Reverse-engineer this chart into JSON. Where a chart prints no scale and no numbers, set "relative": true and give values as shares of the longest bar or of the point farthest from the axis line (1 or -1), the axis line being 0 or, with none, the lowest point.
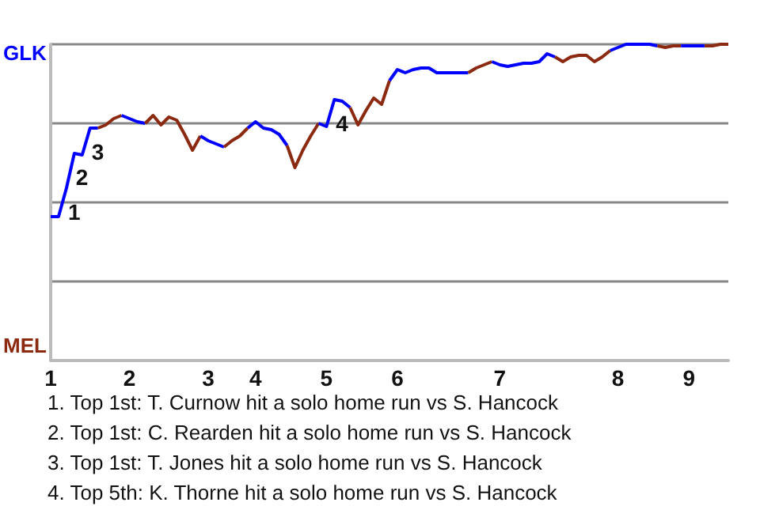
{
  "chart_data": {
    "type": "line",
    "grid": "y",
    "relative": true,
    "categories": [
      "1",
      null,
      null,
      null,
      null,
      null,
      null,
      null,
      null,
      null,
      "2",
      null,
      null,
      null,
      null,
      null,
      null,
      null,
      null,
      null,
      "3",
      null,
      null,
      null,
      null,
      null,
      "4",
      null,
      null,
      null,
      null,
      null,
      null,
      null,
      null,
      "5",
      null,
      null,
      null,
      null,
      null,
      null,
      null,
      null,
      "6",
      null,
      null,
      null,
      null,
      null,
      null,
      null,
      null,
      null,
      null,
      null,
      null,
      "7",
      null,
      null,
      null,
      null,
      null,
      null,
      null,
      null,
      null,
      null,
      null,
      null,
      null,
      null,
      "8",
      null,
      null,
      null,
      null,
      null,
      null,
      null,
      null,
      "9",
      null,
      null,
      null,
      null,
      null
    ],
    "series": [
      {
        "name": "GLK",
        "color": "#0000ff",
        "values": [
          0.455,
          0.455,
          0.545,
          0.655,
          0.65,
          0.735,
          0.735,
          null,
          null,
          null,
          null,
          null,
          null,
          null,
          null,
          null,
          null,
          null,
          null,
          null,
          null,
          null,
          null,
          null,
          null,
          null,
          null,
          null,
          null,
          null,
          null,
          null,
          null,
          null,
          null,
          null,
          null,
          null,
          null,
          null,
          null,
          null,
          null,
          null,
          null,
          null,
          null,
          null,
          null,
          null,
          null,
          null,
          null,
          null,
          null,
          null,
          null,
          null,
          null,
          null,
          null,
          null,
          null,
          null,
          null,
          null,
          null,
          null,
          null,
          null,
          null,
          null,
          null,
          null,
          null,
          null,
          null,
          null,
          null,
          null,
          null,
          null,
          null,
          null,
          null,
          null,
          null
        ]
      },
      {
        "name": "MEL",
        "color": "#8b2a10",
        "values": [
          null,
          null,
          null,
          null,
          null,
          null,
          0.735,
          0.745,
          0.765,
          0.775,
          null,
          null,
          null,
          null,
          null,
          null,
          null,
          null,
          null,
          null,
          null,
          null,
          null,
          null,
          null,
          null,
          null,
          null,
          null,
          null,
          null,
          null,
          null,
          null,
          null,
          null,
          null,
          null,
          null,
          null,
          null,
          null,
          null,
          null,
          null,
          null,
          null,
          null,
          null,
          null,
          null,
          null,
          null,
          null,
          null,
          null,
          null,
          null,
          null,
          null,
          null,
          null,
          null,
          null,
          null,
          null,
          null,
          null,
          null,
          null,
          null,
          null,
          null,
          null,
          null,
          null,
          null,
          null,
          null,
          null,
          null,
          null,
          null,
          null,
          null,
          null,
          null
        ]
      },
      {
        "color": "#0000ff",
        "values": [
          null,
          null,
          null,
          null,
          null,
          null,
          null,
          null,
          null,
          0.775,
          0.765,
          0.755,
          0.75,
          null,
          null,
          null,
          null,
          null,
          null,
          null,
          null,
          null,
          null,
          null,
          null,
          null,
          null,
          null,
          null,
          null,
          null,
          null,
          null,
          null,
          null,
          null,
          null,
          null,
          null,
          null,
          null,
          null,
          null,
          null,
          null,
          null,
          null,
          null,
          null,
          null,
          null,
          null,
          null,
          null,
          null,
          null,
          null,
          null,
          null,
          null,
          null,
          null,
          null,
          null,
          null,
          null,
          null,
          null,
          null,
          null,
          null,
          null,
          null,
          null,
          null,
          null,
          null,
          null,
          null,
          null,
          null,
          null,
          null,
          null,
          null,
          null,
          null
        ]
      },
      {
        "color": "#8b2a10",
        "values": [
          null,
          null,
          null,
          null,
          null,
          null,
          null,
          null,
          null,
          null,
          null,
          null,
          0.75,
          0.775,
          0.745,
          0.77,
          0.76,
          0.715,
          0.665,
          0.71,
          null,
          null,
          null,
          null,
          null,
          null,
          null,
          null,
          null,
          null,
          null,
          null,
          null,
          null,
          null,
          null,
          null,
          null,
          null,
          null,
          null,
          null,
          null,
          null,
          null,
          null,
          null,
          null,
          null,
          null,
          null,
          null,
          null,
          null,
          null,
          null,
          null,
          null,
          null,
          null,
          null,
          null,
          null,
          null,
          null,
          null,
          null,
          null,
          null,
          null,
          null,
          null,
          null,
          null,
          null,
          null,
          null,
          null,
          null,
          null,
          null,
          null,
          null,
          null,
          null,
          null,
          null
        ]
      },
      {
        "color": "#0000ff",
        "values": [
          null,
          null,
          null,
          null,
          null,
          null,
          null,
          null,
          null,
          null,
          null,
          null,
          null,
          null,
          null,
          null,
          null,
          null,
          null,
          0.71,
          0.695,
          0.685,
          0.675,
          null,
          null,
          null,
          null,
          null,
          null,
          null,
          null,
          null,
          null,
          null,
          null,
          null,
          null,
          null,
          null,
          null,
          null,
          null,
          null,
          null,
          null,
          null,
          null,
          null,
          null,
          null,
          null,
          null,
          null,
          null,
          null,
          null,
          null,
          null,
          null,
          null,
          null,
          null,
          null,
          null,
          null,
          null,
          null,
          null,
          null,
          null,
          null,
          null,
          null,
          null,
          null,
          null,
          null,
          null,
          null,
          null,
          null,
          null,
          null,
          null,
          null,
          null,
          null
        ]
      },
      {
        "color": "#8b2a10",
        "values": [
          null,
          null,
          null,
          null,
          null,
          null,
          null,
          null,
          null,
          null,
          null,
          null,
          null,
          null,
          null,
          null,
          null,
          null,
          null,
          null,
          null,
          null,
          0.675,
          0.695,
          0.71,
          0.735,
          null,
          null,
          null,
          null,
          null,
          null,
          null,
          null,
          null,
          null,
          null,
          null,
          null,
          null,
          null,
          null,
          null,
          null,
          null,
          null,
          null,
          null,
          null,
          null,
          null,
          null,
          null,
          null,
          null,
          null,
          null,
          null,
          null,
          null,
          null,
          null,
          null,
          null,
          null,
          null,
          null,
          null,
          null,
          null,
          null,
          null,
          null,
          null,
          null,
          null,
          null,
          null,
          null,
          null,
          null,
          null,
          null,
          null,
          null,
          null,
          null
        ]
      },
      {
        "color": "#0000ff",
        "values": [
          null,
          null,
          null,
          null,
          null,
          null,
          null,
          null,
          null,
          null,
          null,
          null,
          null,
          null,
          null,
          null,
          null,
          null,
          null,
          null,
          null,
          null,
          null,
          null,
          null,
          0.735,
          0.755,
          0.735,
          0.73,
          0.715,
          0.68,
          null,
          null,
          null,
          null,
          null,
          null,
          null,
          null,
          null,
          null,
          null,
          null,
          null,
          null,
          null,
          null,
          null,
          null,
          null,
          null,
          null,
          null,
          null,
          null,
          null,
          null,
          null,
          null,
          null,
          null,
          null,
          null,
          null,
          null,
          null,
          null,
          null,
          null,
          null,
          null,
          null,
          null,
          null,
          null,
          null,
          null,
          null,
          null,
          null,
          null,
          null,
          null,
          null,
          null,
          null,
          null
        ]
      },
      {
        "color": "#8b2a10",
        "values": [
          null,
          null,
          null,
          null,
          null,
          null,
          null,
          null,
          null,
          null,
          null,
          null,
          null,
          null,
          null,
          null,
          null,
          null,
          null,
          null,
          null,
          null,
          null,
          null,
          null,
          null,
          null,
          null,
          null,
          null,
          0.68,
          0.61,
          0.665,
          0.71,
          0.75,
          null,
          null,
          null,
          null,
          null,
          null,
          null,
          null,
          null,
          null,
          null,
          null,
          null,
          null,
          null,
          null,
          null,
          null,
          null,
          null,
          null,
          null,
          null,
          null,
          null,
          null,
          null,
          null,
          null,
          null,
          null,
          null,
          null,
          null,
          null,
          null,
          null,
          null,
          null,
          null,
          null,
          null,
          null,
          null,
          null,
          null,
          null,
          null,
          null,
          null,
          null,
          null
        ]
      },
      {
        "color": "#0000ff",
        "values": [
          null,
          null,
          null,
          null,
          null,
          null,
          null,
          null,
          null,
          null,
          null,
          null,
          null,
          null,
          null,
          null,
          null,
          null,
          null,
          null,
          null,
          null,
          null,
          null,
          null,
          null,
          null,
          null,
          null,
          null,
          null,
          null,
          null,
          null,
          0.75,
          0.74,
          0.825,
          0.82,
          0.8,
          null,
          null,
          null,
          null,
          null,
          null,
          null,
          null,
          null,
          null,
          null,
          null,
          null,
          null,
          null,
          null,
          null,
          null,
          null,
          null,
          null,
          null,
          null,
          null,
          null,
          null,
          null,
          null,
          null,
          null,
          null,
          null,
          null,
          null,
          null,
          null,
          null,
          null,
          null,
          null,
          null,
          null,
          null,
          null,
          null,
          null,
          null,
          null
        ]
      },
      {
        "color": "#8b2a10",
        "values": [
          null,
          null,
          null,
          null,
          null,
          null,
          null,
          null,
          null,
          null,
          null,
          null,
          null,
          null,
          null,
          null,
          null,
          null,
          null,
          null,
          null,
          null,
          null,
          null,
          null,
          null,
          null,
          null,
          null,
          null,
          null,
          null,
          null,
          null,
          null,
          null,
          null,
          null,
          0.8,
          0.745,
          0.79,
          0.83,
          0.81,
          0.885,
          null,
          null,
          null,
          null,
          null,
          null,
          null,
          null,
          null,
          null,
          null,
          null,
          null,
          null,
          null,
          null,
          null,
          null,
          null,
          null,
          null,
          null,
          null,
          null,
          null,
          null,
          null,
          null,
          null,
          null,
          null,
          null,
          null,
          null,
          null,
          null,
          null,
          null,
          null,
          null,
          null,
          null,
          null
        ]
      },
      {
        "color": "#0000ff",
        "values": [
          null,
          null,
          null,
          null,
          null,
          null,
          null,
          null,
          null,
          null,
          null,
          null,
          null,
          null,
          null,
          null,
          null,
          null,
          null,
          null,
          null,
          null,
          null,
          null,
          null,
          null,
          null,
          null,
          null,
          null,
          null,
          null,
          null,
          null,
          null,
          null,
          null,
          null,
          null,
          null,
          null,
          null,
          null,
          0.885,
          0.92,
          0.91,
          0.92,
          0.925,
          0.925,
          0.91,
          0.91,
          0.91,
          0.91,
          0.91,
          null,
          null,
          null,
          null,
          null,
          null,
          null,
          null,
          null,
          null,
          null,
          null,
          null,
          null,
          null,
          null,
          null,
          null,
          null,
          null,
          null,
          null,
          null,
          null,
          null,
          null,
          null,
          null,
          null,
          null,
          null,
          null,
          null
        ]
      },
      {
        "color": "#8b2a10",
        "values": [
          null,
          null,
          null,
          null,
          null,
          null,
          null,
          null,
          null,
          null,
          null,
          null,
          null,
          null,
          null,
          null,
          null,
          null,
          null,
          null,
          null,
          null,
          null,
          null,
          null,
          null,
          null,
          null,
          null,
          null,
          null,
          null,
          null,
          null,
          null,
          null,
          null,
          null,
          null,
          null,
          null,
          null,
          null,
          null,
          null,
          null,
          null,
          null,
          null,
          null,
          null,
          null,
          null,
          0.91,
          0.925,
          0.935,
          0.945,
          null,
          null,
          null,
          null,
          null,
          null,
          null,
          null,
          null,
          null,
          null,
          null,
          null,
          null,
          null,
          null,
          null,
          null,
          null,
          null,
          null,
          null,
          null,
          null,
          null,
          null,
          null,
          null,
          null,
          null
        ]
      },
      {
        "color": "#0000ff",
        "values": [
          null,
          null,
          null,
          null,
          null,
          null,
          null,
          null,
          null,
          null,
          null,
          null,
          null,
          null,
          null,
          null,
          null,
          null,
          null,
          null,
          null,
          null,
          null,
          null,
          null,
          null,
          null,
          null,
          null,
          null,
          null,
          null,
          null,
          null,
          null,
          null,
          null,
          null,
          null,
          null,
          null,
          null,
          null,
          null,
          null,
          null,
          null,
          null,
          null,
          null,
          null,
          null,
          null,
          null,
          null,
          null,
          0.945,
          0.935,
          0.93,
          0.935,
          0.94,
          0.94,
          0.945,
          0.97,
          0.96,
          null,
          null,
          null,
          null,
          null,
          null,
          null,
          null,
          null,
          null,
          null,
          null,
          null,
          null,
          null,
          null,
          null,
          null,
          null,
          null,
          null,
          null
        ]
      },
      {
        "color": "#8b2a10",
        "values": [
          null,
          null,
          null,
          null,
          null,
          null,
          null,
          null,
          null,
          null,
          null,
          null,
          null,
          null,
          null,
          null,
          null,
          null,
          null,
          null,
          null,
          null,
          null,
          null,
          null,
          null,
          null,
          null,
          null,
          null,
          null,
          null,
          null,
          null,
          null,
          null,
          null,
          null,
          null,
          null,
          null,
          null,
          null,
          null,
          null,
          null,
          null,
          null,
          null,
          null,
          null,
          null,
          null,
          null,
          null,
          null,
          null,
          null,
          null,
          null,
          null,
          null,
          null,
          null,
          0.96,
          0.945,
          0.96,
          0.965,
          0.965,
          0.945,
          0.96,
          0.98,
          null,
          null,
          null,
          null,
          null,
          null,
          null,
          null,
          null,
          null,
          null,
          null,
          null,
          null,
          null
        ]
      },
      {
        "color": "#0000ff",
        "values": [
          null,
          null,
          null,
          null,
          null,
          null,
          null,
          null,
          null,
          null,
          null,
          null,
          null,
          null,
          null,
          null,
          null,
          null,
          null,
          null,
          null,
          null,
          null,
          null,
          null,
          null,
          null,
          null,
          null,
          null,
          null,
          null,
          null,
          null,
          null,
          null,
          null,
          null,
          null,
          null,
          null,
          null,
          null,
          null,
          null,
          null,
          null,
          null,
          null,
          null,
          null,
          null,
          null,
          null,
          null,
          null,
          null,
          null,
          null,
          null,
          null,
          null,
          null,
          null,
          null,
          null,
          null,
          null,
          null,
          null,
          null,
          0.98,
          0.99,
          1,
          1,
          1,
          1,
          0.995,
          null,
          null,
          null,
          null,
          null,
          null,
          null,
          null,
          null
        ]
      },
      {
        "color": "#8b2a10",
        "values": [
          null,
          null,
          null,
          null,
          null,
          null,
          null,
          null,
          null,
          null,
          null,
          null,
          null,
          null,
          null,
          null,
          null,
          null,
          null,
          null,
          null,
          null,
          null,
          null,
          null,
          null,
          null,
          null,
          null,
          null,
          null,
          null,
          null,
          null,
          null,
          null,
          null,
          null,
          null,
          null,
          null,
          null,
          null,
          null,
          null,
          null,
          null,
          null,
          null,
          null,
          null,
          null,
          null,
          null,
          null,
          null,
          null,
          null,
          null,
          null,
          null,
          null,
          null,
          null,
          null,
          null,
          null,
          null,
          null,
          null,
          null,
          null,
          null,
          null,
          null,
          null,
          null,
          0.995,
          0.99,
          0.995,
          0.995,
          null,
          null,
          null,
          null,
          null,
          null
        ]
      },
      {
        "color": "#0000ff",
        "values": [
          null,
          null,
          null,
          null,
          null,
          null,
          null,
          null,
          null,
          null,
          null,
          null,
          null,
          null,
          null,
          null,
          null,
          null,
          null,
          null,
          null,
          null,
          null,
          null,
          null,
          null,
          null,
          null,
          null,
          null,
          null,
          null,
          null,
          null,
          null,
          null,
          null,
          null,
          null,
          null,
          null,
          null,
          null,
          null,
          null,
          null,
          null,
          null,
          null,
          null,
          null,
          null,
          null,
          null,
          null,
          null,
          null,
          null,
          null,
          null,
          null,
          null,
          null,
          null,
          null,
          null,
          null,
          null,
          null,
          null,
          null,
          null,
          null,
          null,
          null,
          null,
          null,
          null,
          null,
          null,
          0.995,
          0.995,
          0.995,
          0.995,
          null,
          null,
          null
        ]
      },
      {
        "color": "#8b2a10",
        "values": [
          null,
          null,
          null,
          null,
          null,
          null,
          null,
          null,
          null,
          null,
          null,
          null,
          null,
          null,
          null,
          null,
          null,
          null,
          null,
          null,
          null,
          null,
          null,
          null,
          null,
          null,
          null,
          null,
          null,
          null,
          null,
          null,
          null,
          null,
          null,
          null,
          null,
          null,
          null,
          null,
          null,
          null,
          null,
          null,
          null,
          null,
          null,
          null,
          null,
          null,
          null,
          null,
          null,
          null,
          null,
          null,
          null,
          null,
          null,
          null,
          null,
          null,
          null,
          null,
          null,
          null,
          null,
          null,
          null,
          null,
          null,
          null,
          null,
          null,
          null,
          null,
          null,
          null,
          null,
          null,
          null,
          null,
          null,
          0.995,
          0.995,
          1,
          1
        ]
      }
    ],
    "annotations": [
      {
        "text": "1",
        "y": 0.545
      },
      {
        "text": "2",
        "y": 0.655
      },
      {
        "text": "3",
        "y": 0.735
      },
      {
        "text": "4",
        "y": 0.825
      },
      "1. Top 1st: T. Curnow hit a solo home run vs S. Hancock",
      "2. Top 1st: C. Rearden hit a solo home run vs S. Hancock",
      "3. Top 1st: T. Jones hit a solo home run vs S. Hancock",
      "4. Top 5th: K. Thorne hit a solo home run vs S. Hancock"
    ]
  }
}
